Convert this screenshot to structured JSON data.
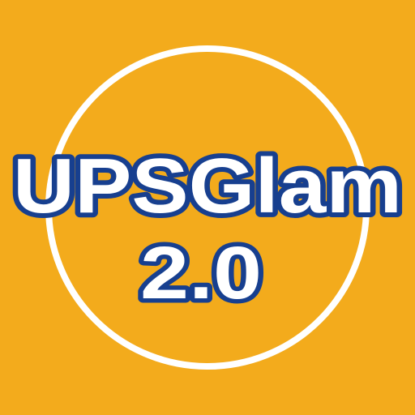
{
  "logo": {
    "title": "UPSGlam",
    "version": "2.0"
  },
  "colors": {
    "background": "#f3ab1c",
    "ring": "#ffffff",
    "text_fill": "#ffffff",
    "text_outline": "#173f8f"
  }
}
